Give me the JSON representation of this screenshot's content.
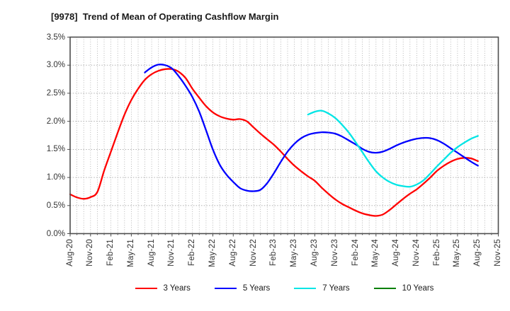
{
  "title": "[9978]  Trend of Mean of Operating Cashflow Margin",
  "chart_data": {
    "type": "line",
    "title": "[9978]  Trend of Mean of Operating Cashflow Margin",
    "xlabel": "",
    "ylabel": "",
    "ylim": [
      0.0,
      3.5
    ],
    "y_tick_step": 0.5,
    "y_tick_labels": [
      "0.0%",
      "0.5%",
      "1.0%",
      "1.5%",
      "2.0%",
      "2.5%",
      "3.0%",
      "3.5%"
    ],
    "x_tick_labels": [
      "Aug-20",
      "Nov-20",
      "Feb-21",
      "May-21",
      "Aug-21",
      "Nov-21",
      "Feb-22",
      "May-22",
      "Aug-22",
      "Nov-22",
      "Feb-23",
      "May-23",
      "Aug-23",
      "Nov-23",
      "Feb-24",
      "May-24",
      "Aug-24",
      "Nov-24",
      "Feb-25",
      "May-25",
      "Aug-25",
      "Nov-25"
    ],
    "x_unit": "month",
    "months_span": 63,
    "grid": {
      "vertical": "monthly dotted",
      "horizontal": "every 0.5% dotted",
      "style": "dotted gray"
    },
    "legend_position": "bottom-center",
    "series": [
      {
        "name": "3 Years",
        "color": "#ff0000",
        "start_month_index": 0,
        "start_label": "Aug-20",
        "end_label": "Aug-25",
        "values": [
          0.7,
          0.645,
          0.62,
          0.65,
          0.74,
          1.12,
          1.46,
          1.8,
          2.12,
          2.38,
          2.58,
          2.74,
          2.84,
          2.9,
          2.93,
          2.93,
          2.88,
          2.77,
          2.58,
          2.42,
          2.27,
          2.16,
          2.09,
          2.05,
          2.03,
          2.04,
          2.0,
          1.89,
          1.78,
          1.68,
          1.58,
          1.46,
          1.33,
          1.21,
          1.11,
          1.02,
          0.94,
          0.82,
          0.71,
          0.61,
          0.53,
          0.47,
          0.41,
          0.36,
          0.33,
          0.315,
          0.34,
          0.42,
          0.52,
          0.62,
          0.71,
          0.79,
          0.89,
          1.0,
          1.12,
          1.21,
          1.28,
          1.33,
          1.35,
          1.34,
          1.29
        ]
      },
      {
        "name": "5 Years",
        "color": "#0000ff",
        "start_month_index": 11,
        "start_label": "Jul-21",
        "end_label": "Aug-25",
        "values": [
          2.87,
          2.96,
          3.01,
          3.0,
          2.94,
          2.8,
          2.63,
          2.43,
          2.17,
          1.84,
          1.5,
          1.23,
          1.05,
          0.92,
          0.81,
          0.765,
          0.755,
          0.78,
          0.9,
          1.08,
          1.28,
          1.46,
          1.6,
          1.7,
          1.76,
          1.79,
          1.805,
          1.8,
          1.78,
          1.73,
          1.66,
          1.59,
          1.51,
          1.455,
          1.44,
          1.46,
          1.51,
          1.57,
          1.62,
          1.66,
          1.69,
          1.705,
          1.7,
          1.665,
          1.6,
          1.52,
          1.44,
          1.36,
          1.28,
          1.21
        ]
      },
      {
        "name": "7 Years",
        "color": "#00e5e5",
        "start_month_index": 35,
        "start_label": "Jul-23",
        "end_label": "Aug-25",
        "values": [
          2.12,
          2.17,
          2.19,
          2.14,
          2.06,
          1.94,
          1.8,
          1.63,
          1.45,
          1.27,
          1.11,
          1.0,
          0.92,
          0.87,
          0.845,
          0.835,
          0.875,
          0.95,
          1.07,
          1.2,
          1.32,
          1.44,
          1.54,
          1.62,
          1.69,
          1.74
        ]
      },
      {
        "name": "10 Years",
        "color": "#007f00",
        "start_month_index": 0,
        "values": []
      }
    ],
    "axis_colors": {
      "grid": "#a6a6a6",
      "border": "#4d4d4d",
      "tick_text": "#333333",
      "title_text": "#1a1a1a"
    }
  }
}
